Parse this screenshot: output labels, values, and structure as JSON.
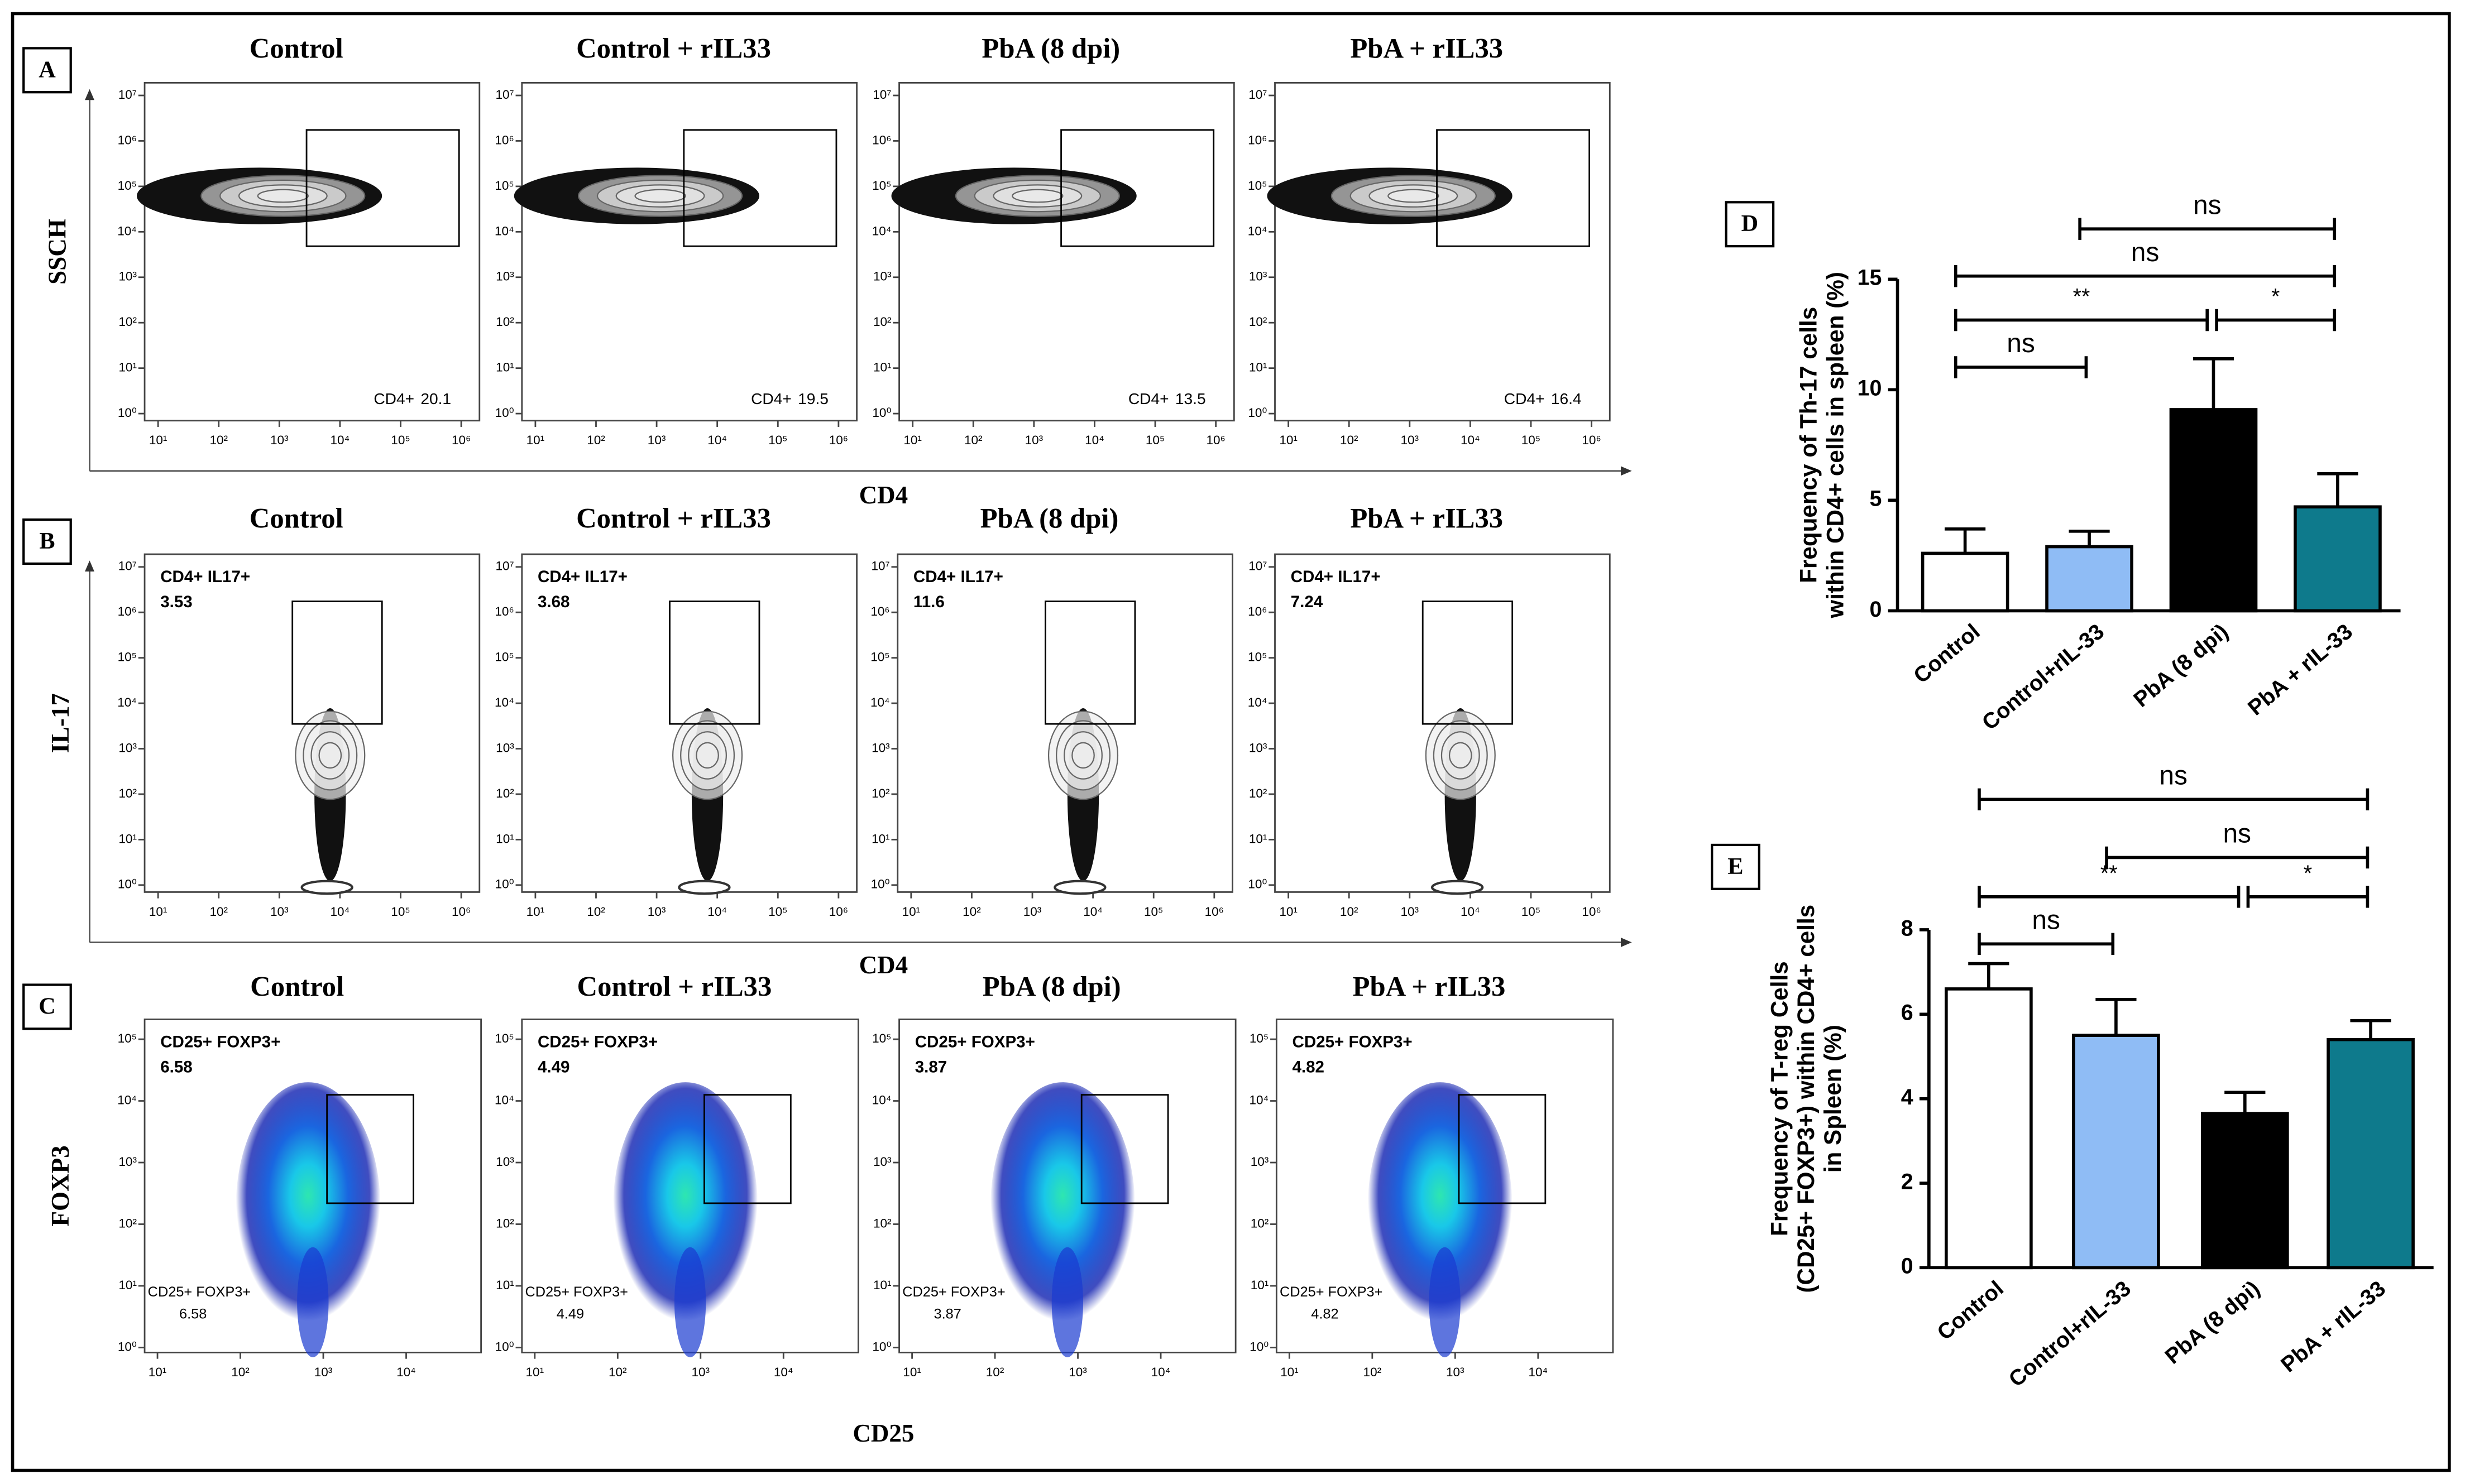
{
  "chart_data": [
    {
      "type": "flow",
      "panel": "A",
      "y_label": "SSCH",
      "x_label": "CD4",
      "xlim": [
        6,
        2000000
      ],
      "ylim": [
        0.7,
        19000000
      ],
      "xticks": [
        {
          "value": 10,
          "label": "10¹"
        },
        {
          "value": 100,
          "label": "10²"
        },
        {
          "value": 1000,
          "label": "10³"
        },
        {
          "value": 10000,
          "label": "10⁴"
        },
        {
          "value": 100000,
          "label": "10⁵"
        },
        {
          "value": 1000000,
          "label": "10⁶"
        }
      ],
      "yticks": [
        {
          "value": 1,
          "label": "10⁰"
        },
        {
          "value": 10,
          "label": "10¹"
        },
        {
          "value": 100,
          "label": "10²"
        },
        {
          "value": 1000,
          "label": "10³"
        },
        {
          "value": 10000,
          "label": "10⁴"
        },
        {
          "value": 100000,
          "label": "10⁵"
        },
        {
          "value": 1000000,
          "label": "10⁶"
        },
        {
          "value": 10000000,
          "label": "10⁷"
        }
      ],
      "plots": [
        {
          "title": "Control",
          "gate_name": "CD4+",
          "gate_value": 20.1
        },
        {
          "title": "Control + rIL33",
          "gate_name": "CD4+",
          "gate_value": 19.5
        },
        {
          "title": "PbA (8 dpi)",
          "gate_name": "CD4+",
          "gate_value": 13.5
        },
        {
          "title": "PbA + rIL33",
          "gate_name": "CD4+",
          "gate_value": 16.4
        }
      ]
    },
    {
      "type": "flow",
      "panel": "B",
      "y_label": "IL-17",
      "x_label": "CD4",
      "xlim": [
        6,
        2000000
      ],
      "ylim": [
        0.7,
        19000000
      ],
      "xticks": [
        {
          "value": 10,
          "label": "10¹"
        },
        {
          "value": 100,
          "label": "10²"
        },
        {
          "value": 1000,
          "label": "10³"
        },
        {
          "value": 10000,
          "label": "10⁴"
        },
        {
          "value": 100000,
          "label": "10⁵"
        },
        {
          "value": 1000000,
          "label": "10⁶"
        }
      ],
      "yticks": [
        {
          "value": 1,
          "label": "10⁰"
        },
        {
          "value": 10,
          "label": "10¹"
        },
        {
          "value": 100,
          "label": "10²"
        },
        {
          "value": 1000,
          "label": "10³"
        },
        {
          "value": 10000,
          "label": "10⁴"
        },
        {
          "value": 100000,
          "label": "10⁵"
        },
        {
          "value": 1000000,
          "label": "10⁶"
        },
        {
          "value": 10000000,
          "label": "10⁷"
        }
      ],
      "plots": [
        {
          "title": "Control",
          "gate_name": "CD4+ IL17+",
          "gate_value": 3.53
        },
        {
          "title": "Control + rIL33",
          "gate_name": "CD4+ IL17+",
          "gate_value": 3.68
        },
        {
          "title": "PbA (8 dpi)",
          "gate_name": "CD4+ IL17+",
          "gate_value": 11.6
        },
        {
          "title": "PbA + rIL33",
          "gate_name": "CD4+ IL17+",
          "gate_value": 7.24
        }
      ]
    },
    {
      "type": "density",
      "panel": "C",
      "y_label": "FOXP3",
      "x_label": "CD25",
      "xlim": [
        7,
        80000
      ],
      "ylim": [
        0.83,
        210000
      ],
      "xticks": [
        {
          "value": 10,
          "label": "10¹"
        },
        {
          "value": 100,
          "label": "10²"
        },
        {
          "value": 1000,
          "label": "10³"
        },
        {
          "value": 10000,
          "label": "10⁴"
        }
      ],
      "yticks": [
        {
          "value": 1,
          "label": "10⁰"
        },
        {
          "value": 10,
          "label": "10¹"
        },
        {
          "value": 100,
          "label": "10²"
        },
        {
          "value": 1000,
          "label": "10³"
        },
        {
          "value": 10000,
          "label": "10⁴"
        },
        {
          "value": 100000,
          "label": "10⁵"
        }
      ],
      "plots": [
        {
          "title": "Control",
          "gate_name": "CD25+ FOXP3+",
          "gate_value": 6.58
        },
        {
          "title": "Control + rIL33",
          "gate_name": "CD25+ FOXP3+",
          "gate_value": 4.49
        },
        {
          "title": "PbA (8 dpi)",
          "gate_name": "CD25+ FOXP3+",
          "gate_value": 3.87
        },
        {
          "title": "PbA + rIL33",
          "gate_name": "CD25+ FOXP3+",
          "gate_value": 4.82
        }
      ]
    },
    {
      "type": "bar",
      "panel": "D",
      "y_label": [
        "Frequency of Th-17 cells",
        "within CD4+ cells in spleen (%)"
      ],
      "categories": [
        "Control",
        "Control+rIL-33",
        "PbA (8 dpi)",
        "PbA + rIL-33"
      ],
      "values": [
        2.6,
        2.9,
        9.1,
        4.7
      ],
      "errors": [
        1.1,
        0.7,
        2.3,
        1.5
      ],
      "colors": [
        "#ffffff",
        "#8fbcf5",
        "#000000",
        "#0e7a8c"
      ],
      "ylim": [
        0,
        15
      ],
      "yticks": [
        0,
        5,
        10,
        15
      ],
      "comparisons": [
        {
          "between": [
            "Control",
            "Control+rIL-33"
          ],
          "label": "ns"
        },
        {
          "between": [
            "Control",
            "PbA (8 dpi)"
          ],
          "label": "**"
        },
        {
          "between": [
            "PbA (8 dpi)",
            "PbA + rIL-33"
          ],
          "label": "*"
        },
        {
          "between": [
            "Control",
            "PbA + rIL-33"
          ],
          "label": "ns"
        },
        {
          "between": [
            "Control+rIL-33",
            "PbA + rIL-33"
          ],
          "label": "ns"
        }
      ]
    },
    {
      "type": "bar",
      "panel": "E",
      "y_label": [
        "Frequency of T-reg Cells",
        "(CD25+ FOXP3+) within CD4+ cells",
        "in Spleen (%)"
      ],
      "categories": [
        "Control",
        "Control+rIL-33",
        "PbA (8 dpi)",
        "PbA + rIL-33"
      ],
      "values": [
        6.6,
        5.5,
        3.65,
        5.4
      ],
      "errors": [
        0.6,
        0.85,
        0.5,
        0.45
      ],
      "colors": [
        "#ffffff",
        "#8fbcf5",
        "#000000",
        "#0e7a8c"
      ],
      "ylim": [
        0,
        8
      ],
      "yticks": [
        0,
        2,
        4,
        6,
        8
      ],
      "comparisons": [
        {
          "between": [
            "Control",
            "Control+rIL-33"
          ],
          "label": "ns"
        },
        {
          "between": [
            "Control",
            "PbA (8 dpi)"
          ],
          "label": "**"
        },
        {
          "between": [
            "PbA (8 dpi)",
            "PbA + rIL-33"
          ],
          "label": "*"
        },
        {
          "between": [
            "Control+rIL-33",
            "PbA + rIL-33"
          ],
          "label": "ns"
        },
        {
          "between": [
            "Control",
            "PbA + rIL-33"
          ],
          "label": "ns"
        }
      ]
    }
  ]
}
